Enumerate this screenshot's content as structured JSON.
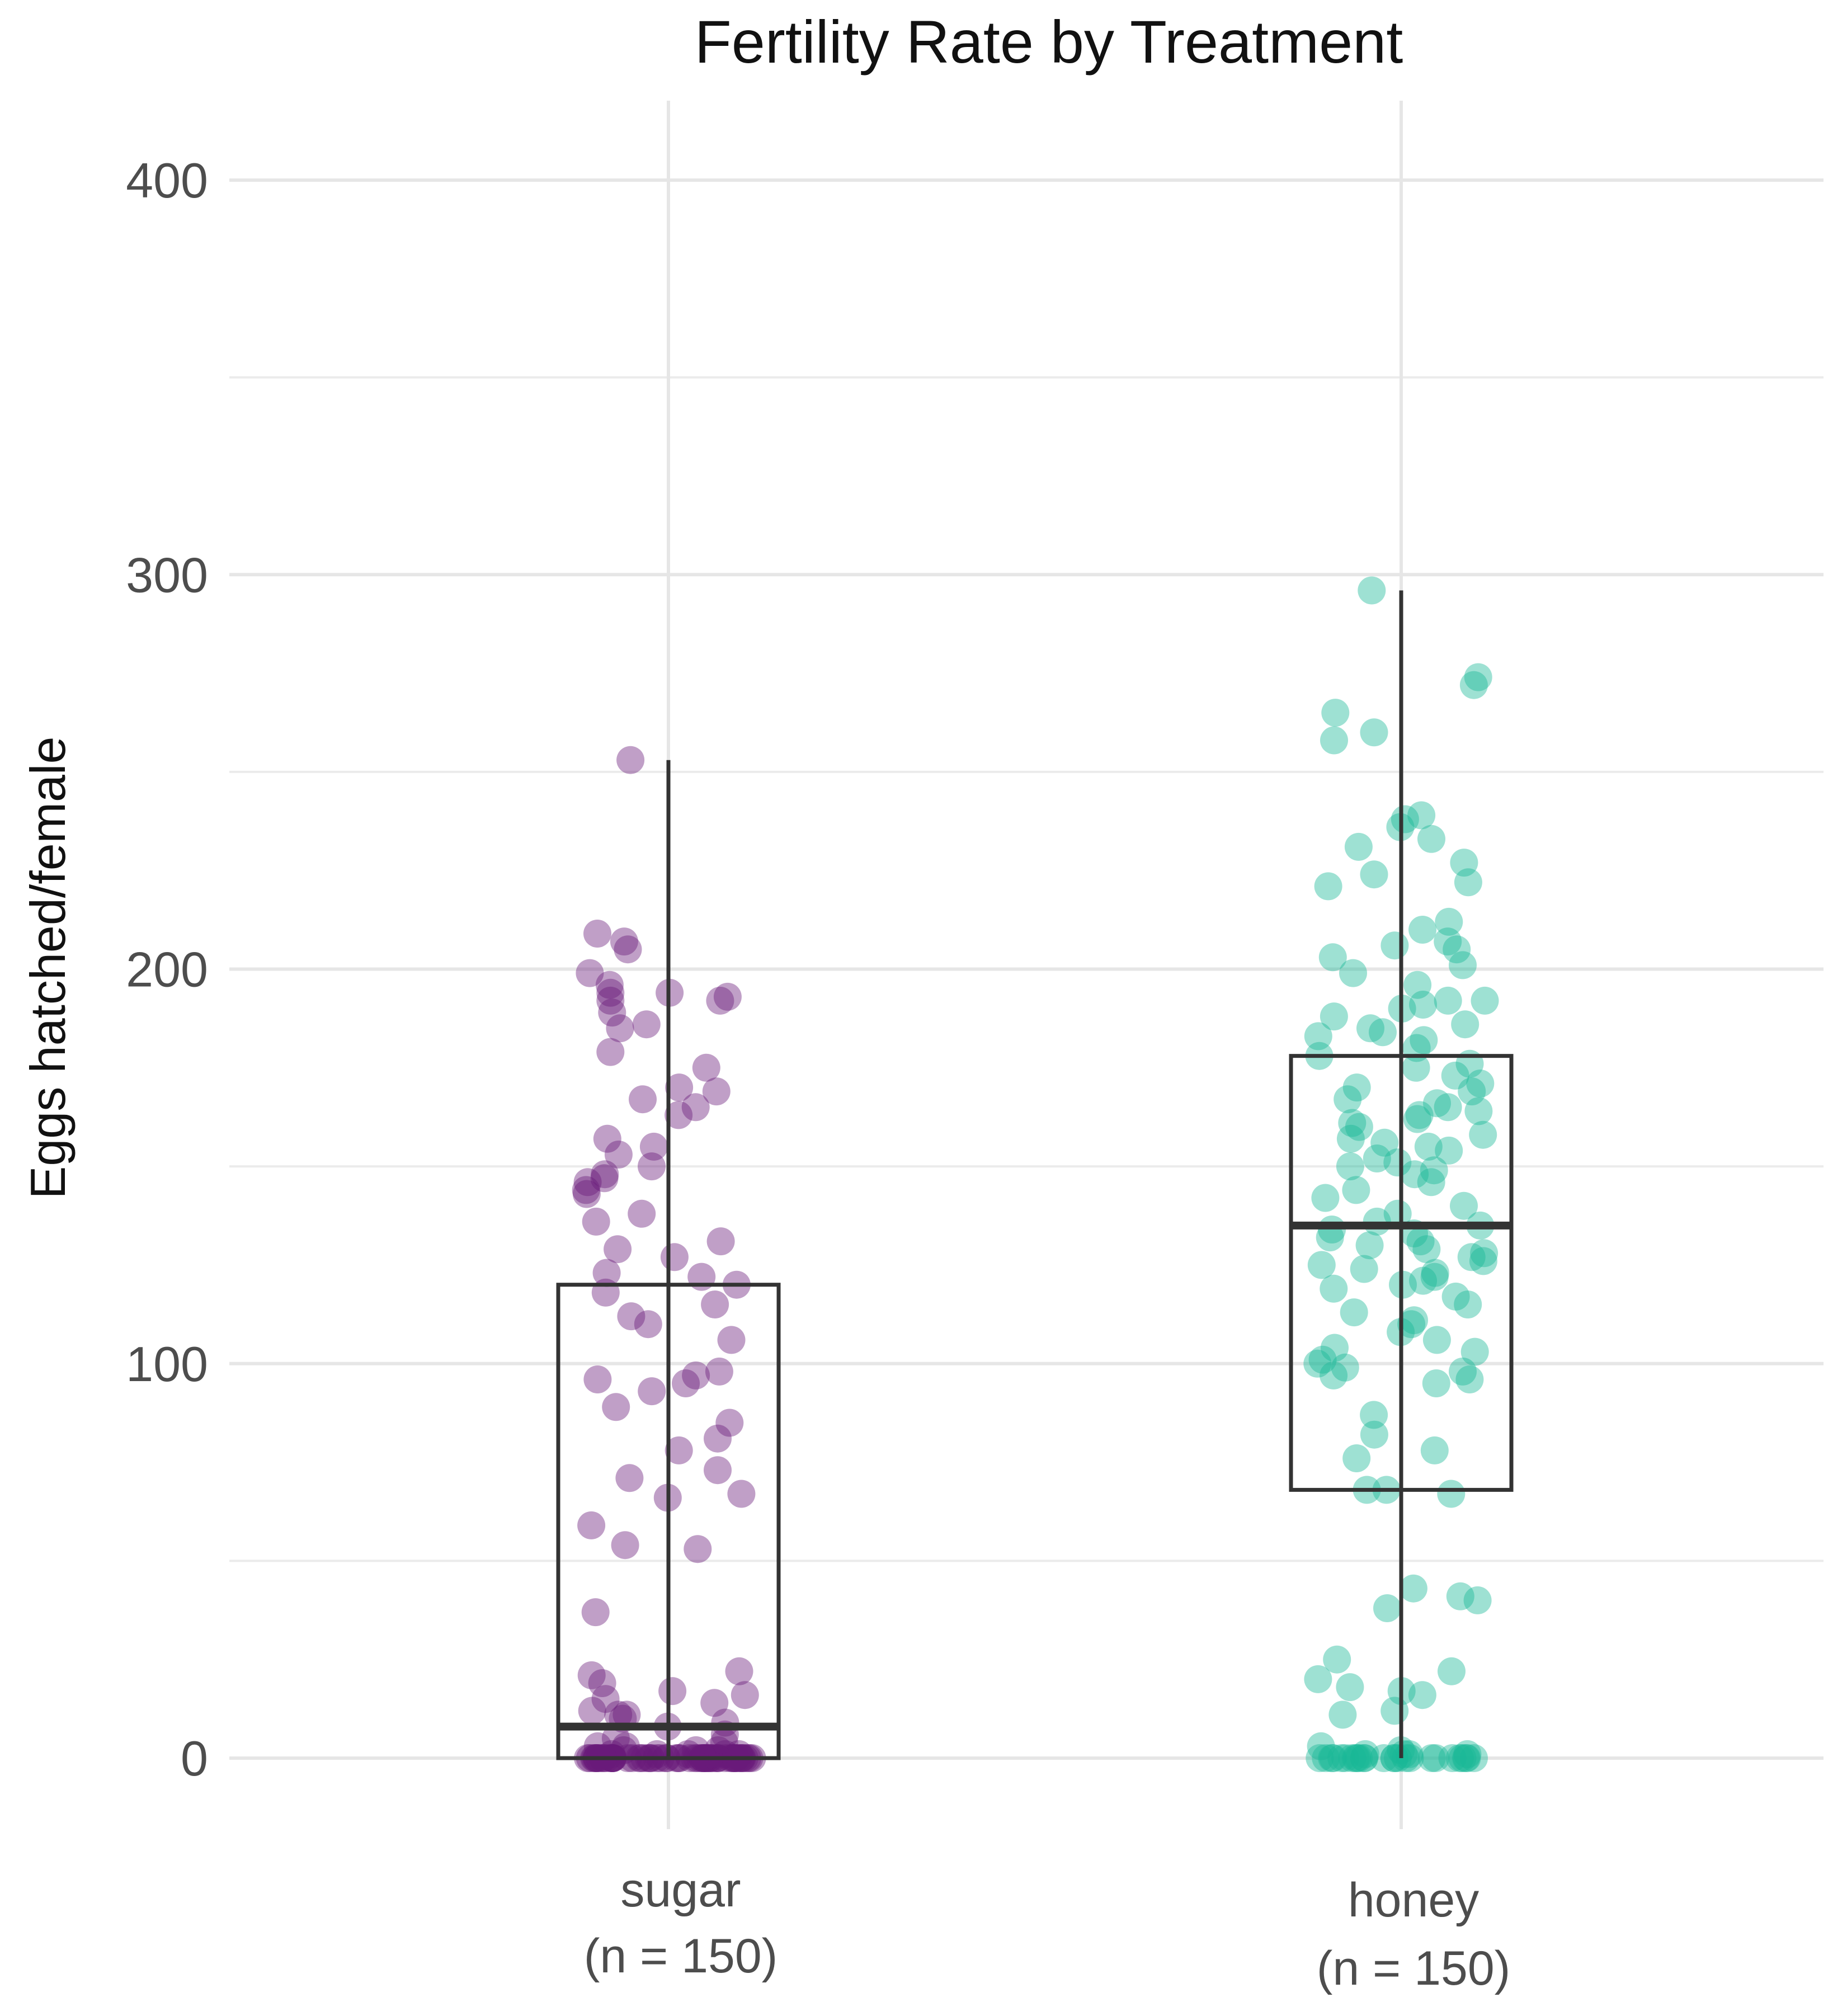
{
  "chart_data": {
    "type": "box",
    "title": "Fertility Rate by Treatment",
    "xlabel": "",
    "ylabel": "Eggs hatched/female",
    "ylim": [
      -20,
      420
    ],
    "y_ticks": [
      0,
      100,
      200,
      300,
      400
    ],
    "y_minor_ticks": [
      50,
      150,
      250,
      350
    ],
    "grid": true,
    "legend": "none",
    "groups": [
      {
        "name": "sugar",
        "count_label": "(n = 150)",
        "color": "#6A1B79",
        "box": {
          "q1": 0,
          "median": 8,
          "q3": 120,
          "whisker_low": 0,
          "whisker_high": 253
        },
        "points": [
          253,
          209,
          207,
          205,
          199,
          196,
          194,
          194,
          193,
          192,
          192,
          189,
          186,
          185,
          179,
          175,
          170,
          169,
          167,
          165,
          163,
          157,
          155,
          153,
          150,
          148,
          147,
          146,
          144,
          143,
          138,
          136,
          131,
          129,
          127,
          123,
          122,
          120,
          118,
          115,
          112,
          110,
          106,
          98,
          97,
          96,
          95,
          93,
          89,
          85,
          81,
          78,
          73,
          71,
          67,
          66,
          59,
          54,
          53,
          37,
          22,
          21,
          19,
          17,
          16,
          15,
          14,
          12,
          11,
          11,
          10,
          9,
          8,
          6,
          5,
          4,
          3,
          3,
          2,
          2,
          2,
          1,
          1,
          1,
          1,
          1,
          0,
          0,
          0,
          0,
          0,
          0,
          0,
          0,
          0,
          0,
          0,
          0,
          0,
          0,
          0,
          0,
          0,
          0,
          0,
          0,
          0,
          0,
          0,
          0,
          0,
          0,
          0,
          0,
          0,
          0,
          0,
          0,
          0,
          0,
          0,
          0,
          0,
          0,
          0,
          0,
          0,
          0,
          0,
          0,
          0,
          0,
          0,
          0,
          0,
          0,
          0,
          0,
          0,
          0,
          0,
          0,
          0,
          0,
          0,
          0,
          0,
          0,
          0,
          0
        ]
      },
      {
        "name": "honey",
        "count_label": "(n = 150)",
        "color": "#19B896",
        "box": {
          "q1": 68,
          "median": 135,
          "q3": 178,
          "whisker_low": 0,
          "whisker_high": 296
        },
        "points": [
          296,
          274,
          272,
          265,
          260,
          258,
          239,
          238,
          236,
          233,
          231,
          227,
          224,
          222,
          221,
          212,
          210,
          207,
          206,
          205,
          203,
          201,
          199,
          196,
          192,
          192,
          191,
          190,
          188,
          186,
          185,
          184,
          183,
          182,
          180,
          178,
          176,
          175,
          173,
          171,
          170,
          169,
          167,
          166,
          165,
          164,
          163,
          162,
          161,
          160,
          158,
          157,
          156,
          155,
          154,
          152,
          151,
          150,
          149,
          148,
          146,
          144,
          142,
          140,
          138,
          136,
          135,
          134,
          133,
          132,
          131,
          130,
          129,
          128,
          127,
          126,
          125,
          124,
          123,
          122,
          121,
          120,
          119,
          117,
          115,
          113,
          111,
          110,
          108,
          106,
          104,
          103,
          101,
          100,
          99,
          98,
          97,
          96,
          95,
          87,
          82,
          78,
          76,
          68,
          68,
          67,
          43,
          41,
          40,
          38,
          25,
          22,
          20,
          18,
          17,
          16,
          12,
          11,
          3,
          2,
          1,
          1,
          1,
          1,
          0,
          0,
          0,
          0,
          0,
          0,
          0,
          0,
          0,
          0,
          0,
          0,
          0,
          0,
          0,
          0,
          0,
          0,
          0,
          0,
          0,
          0,
          0,
          0,
          0,
          0
        ]
      }
    ]
  }
}
